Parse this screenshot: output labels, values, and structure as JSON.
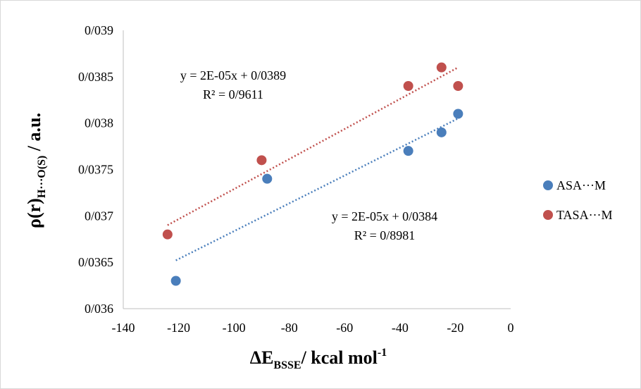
{
  "chart_data": {
    "type": "scatter",
    "title": "",
    "xlabel": {
      "main": "ΔE",
      "sub": "BSSE",
      "rest": "/ kcal mol",
      "sup": "-1"
    },
    "ylabel": {
      "main": "ρ(r)",
      "sub": "H···O(S)",
      "rest": " / a.u."
    },
    "xlim": [
      -140,
      0
    ],
    "ylim": [
      0.036,
      0.039
    ],
    "x_ticks": [
      -140,
      -120,
      -100,
      -80,
      -60,
      -40,
      -20,
      0
    ],
    "x_tick_labels": [
      "-140",
      "-120",
      "-100",
      "-80",
      "-60",
      "-40",
      "-20",
      "0"
    ],
    "y_ticks": [
      0.036,
      0.0365,
      0.037,
      0.0375,
      0.038,
      0.0385,
      0.039
    ],
    "y_tick_labels": [
      "0/036",
      "0/0365",
      "0/037",
      "0/0375",
      "0/038",
      "0/0385",
      "0/039"
    ],
    "grid": false,
    "legend_position": "right",
    "series": [
      {
        "name": "ASA···M",
        "color": "#4a7ebb",
        "points": [
          [
            -121,
            0.0363
          ],
          [
            -88,
            0.0374
          ],
          [
            -37,
            0.0377
          ],
          [
            -25,
            0.0379
          ],
          [
            -19,
            0.0381
          ]
        ],
        "trendline": {
          "x_range": [
            -121,
            -19
          ],
          "y_range": [
            0.03652,
            0.03805
          ],
          "equation": "y = 2E-05x + 0/0384",
          "r2": "R² = 0/8981"
        }
      },
      {
        "name": "TASA···M",
        "color": "#c0504d",
        "points": [
          [
            -124,
            0.0368
          ],
          [
            -90,
            0.0376
          ],
          [
            -37,
            0.0384
          ],
          [
            -25,
            0.0386
          ],
          [
            -19,
            0.0384
          ]
        ],
        "trendline": {
          "x_range": [
            -124,
            -19
          ],
          "y_range": [
            0.0369,
            0.0386
          ],
          "equation": "y = 2E-05x + 0/0389",
          "r2": "R² = 0/9611"
        }
      }
    ]
  }
}
